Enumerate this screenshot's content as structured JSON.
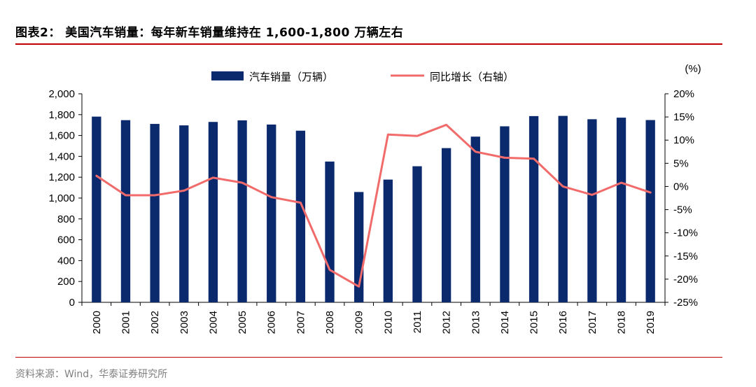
{
  "heading": {
    "figure_label": "图表2：",
    "title": "美国汽车销量：每年新车销量维持在 1,600-1,800 万辆左右"
  },
  "source_note": "资料来源：Wind，华泰证券研究所",
  "colors": {
    "bar": "#0b2a6e",
    "line": "#f26b6b",
    "accent_rule": "#c00000"
  },
  "chart_data": {
    "type": "bar+line",
    "categories": [
      "2000",
      "2001",
      "2002",
      "2003",
      "2004",
      "2005",
      "2006",
      "2007",
      "2008",
      "2009",
      "2010",
      "2011",
      "2012",
      "2013",
      "2014",
      "2015",
      "2016",
      "2017",
      "2018",
      "2019"
    ],
    "series": [
      {
        "name": "汽车销量（万辆）",
        "type": "bar",
        "axis": "left",
        "values": [
          1781,
          1747,
          1711,
          1697,
          1730,
          1745,
          1705,
          1646,
          1350,
          1058,
          1177,
          1305,
          1479,
          1589,
          1688,
          1786,
          1788,
          1756,
          1771,
          1748
        ]
      },
      {
        "name": "同比增长（右轴）",
        "type": "line",
        "axis": "right",
        "values": [
          2.3,
          -1.9,
          -1.9,
          -0.9,
          1.9,
          0.8,
          -2.3,
          -3.5,
          -18.0,
          -21.6,
          11.2,
          10.9,
          13.3,
          7.5,
          6.2,
          6.0,
          0.0,
          -1.8,
          0.8,
          -1.3
        ]
      }
    ],
    "y_left": {
      "ylim": [
        0,
        2000
      ],
      "ticks": [
        0,
        200,
        400,
        600,
        800,
        1000,
        1200,
        1400,
        1600,
        1800,
        2000
      ],
      "tick_labels": [
        "0",
        "200",
        "400",
        "600",
        "800",
        "1,000",
        "1,200",
        "1,400",
        "1,600",
        "1,800",
        "2,000"
      ]
    },
    "y_right": {
      "unit_label": "(%)",
      "ylim": [
        -25,
        20
      ],
      "ticks": [
        -25,
        -20,
        -15,
        -10,
        -5,
        0,
        5,
        10,
        15,
        20
      ],
      "tick_labels": [
        "-25%",
        "-20%",
        "-15%",
        "-10%",
        "-5%",
        "0%",
        "5%",
        "10%",
        "15%",
        "20%"
      ]
    },
    "grid": false,
    "legend_position": "top"
  }
}
